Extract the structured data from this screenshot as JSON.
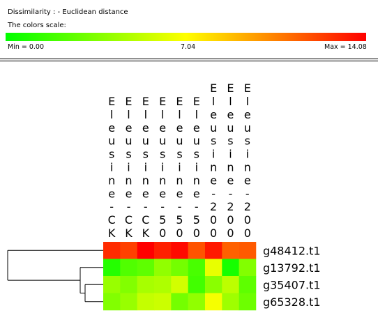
{
  "header": {
    "dissimilarity_label": "Dissimilarity : - Euclidean distance",
    "colors_scale_label": "The colors scale:",
    "scale_min_label": "Min = 0.00",
    "scale_mid_label": "7.04",
    "scale_max_label": "Max = 14.08",
    "scale_colors": [
      "#00ff00",
      "#ffff00",
      "#ff0000"
    ]
  },
  "chart_data": {
    "type": "heatmap",
    "title": "",
    "value_range": [
      0.0,
      14.08
    ],
    "columns": [
      "Eleusine-CK",
      "Eleusine-CK",
      "Eleusine-CK",
      "Eleusine-50",
      "Eleusine-50",
      "Eleusine-50",
      "Eleusine-200",
      "Eleusine-200",
      "Eleusine-200"
    ],
    "rows": [
      "g48412.t1",
      "g13792.t1",
      "g35407.t1",
      "g65328.t1"
    ],
    "values": [
      [
        12.9,
        12.3,
        14.08,
        13.2,
        13.8,
        11.8,
        13.4,
        11.4,
        11.6
      ],
      [
        1.0,
        2.2,
        2.6,
        4.0,
        3.2,
        2.0,
        6.4,
        0.6,
        3.6
      ],
      [
        4.2,
        3.6,
        4.6,
        4.8,
        5.8,
        1.8,
        3.8,
        5.2,
        2.6
      ],
      [
        3.6,
        4.2,
        5.4,
        5.6,
        3.2,
        4.0,
        6.8,
        4.4,
        3.0
      ]
    ],
    "dendrogram": {
      "rows": {
        "merges": [
          [
            "g35407.t1",
            "g65328.t1"
          ],
          [
            "g13792.t1",
            "(g35407.t1, g65328.t1)"
          ],
          [
            "g48412.t1",
            "(g13792.t1, g35407.t1, g65328.t1)"
          ]
        ]
      }
    }
  }
}
